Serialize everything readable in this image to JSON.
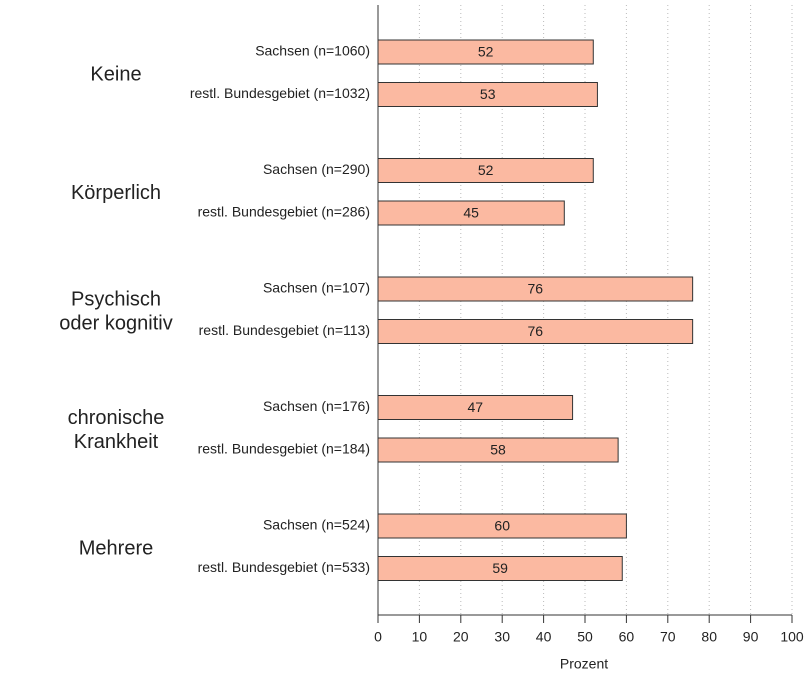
{
  "chart_data": {
    "type": "bar",
    "orientation": "horizontal",
    "groups": [
      [
        "Keine"
      ],
      [
        "Körperlich"
      ],
      [
        "Psychisch",
        "oder kognitiv"
      ],
      [
        "chronische",
        "Krankheit"
      ],
      [
        "Mehrere"
      ]
    ],
    "categories": [
      "Sachsen (n=1060)",
      "restl. Bundesgebiet (n=1032)",
      "Sachsen (n=290)",
      "restl. Bundesgebiet (n=286)",
      "Sachsen (n=107)",
      "restl. Bundesgebiet (n=113)",
      "Sachsen (n=176)",
      "restl. Bundesgebiet (n=184)",
      "Sachsen (n=524)",
      "restl. Bundesgebiet (n=533)"
    ],
    "values": [
      52,
      53,
      52,
      45,
      76,
      76,
      47,
      58,
      60,
      59
    ],
    "color": "#fbb9a1",
    "xlim": [
      0,
      100
    ],
    "xticks": [
      0,
      10,
      20,
      30,
      40,
      50,
      60,
      70,
      80,
      90,
      100
    ],
    "xlabel": "Prozent",
    "grid": true
  }
}
